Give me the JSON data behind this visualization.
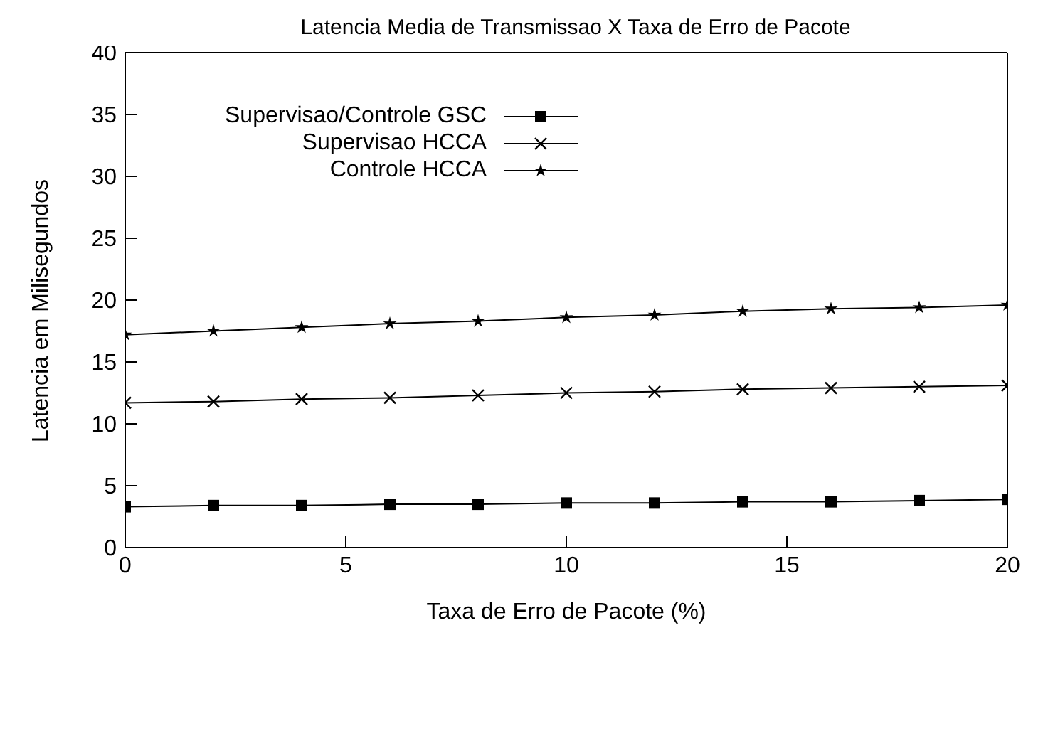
{
  "chart_data": {
    "type": "line",
    "title": "Latencia Media de Transmissao X Taxa de Erro de Pacote",
    "xlabel": "Taxa de Erro de Pacote (%)",
    "ylabel": "Latencia em Milisegundos",
    "x": [
      0,
      2,
      4,
      6,
      8,
      10,
      12,
      14,
      16,
      18,
      20
    ],
    "series": [
      {
        "name": "Supervisao/Controle GSC",
        "color": "#000000",
        "marker": "square",
        "values": [
          3.3,
          3.4,
          3.4,
          3.5,
          3.5,
          3.6,
          3.6,
          3.7,
          3.7,
          3.8,
          3.9
        ]
      },
      {
        "name": "Supervisao HCCA",
        "color": "#000000",
        "marker": "cross",
        "values": [
          11.7,
          11.8,
          12,
          12.1,
          12.3,
          12.5,
          12.6,
          12.8,
          12.9,
          13,
          13.1
        ]
      },
      {
        "name": "Controle HCCA",
        "color": "#000000",
        "marker": "star",
        "values": [
          17.2,
          17.5,
          17.8,
          18.1,
          18.3,
          18.6,
          18.8,
          19.1,
          19.3,
          19.4,
          19.6
        ]
      }
    ],
    "xlim": [
      0,
      20
    ],
    "xticks": [
      0,
      5,
      10,
      15,
      20
    ],
    "ylim": [
      0,
      40
    ],
    "yticks": [
      0,
      5,
      10,
      15,
      20,
      25,
      30,
      35,
      40
    ],
    "grid": false,
    "legend": "top left",
    "line_style": "solid"
  }
}
